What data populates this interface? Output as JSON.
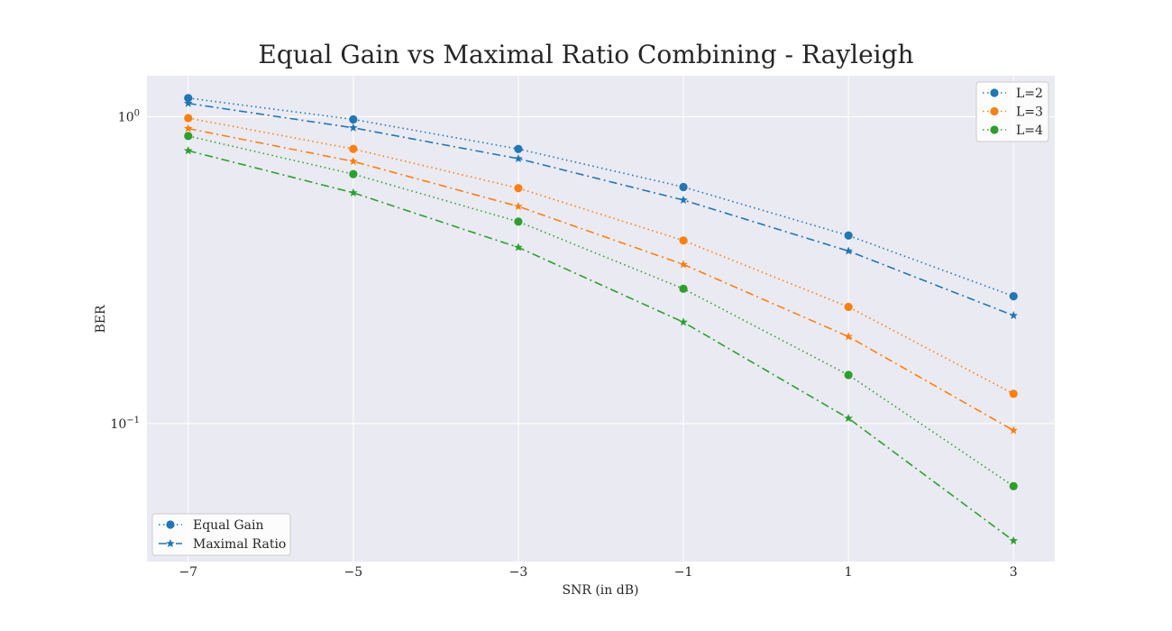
{
  "chart_data": {
    "type": "line",
    "title": "Equal Gain vs Maximal Ratio Combining - Rayleigh",
    "xlabel": "SNR (in dB)",
    "ylabel": "BER",
    "yscale": "log",
    "x": [
      -7,
      -5,
      -3,
      -1,
      1,
      3
    ],
    "xticks": [
      -7,
      -5,
      -3,
      -1,
      1,
      3
    ],
    "xtick_labels": [
      "−7",
      "−5",
      "−3",
      "−1",
      "1",
      "3"
    ],
    "xlim": [
      -7.5,
      3.5
    ],
    "ylim": [
      0.0355,
      1.36
    ],
    "yticks": [
      {
        "value": 1.0,
        "base": "10",
        "exp": "0"
      },
      {
        "value": 0.1,
        "base": "10",
        "exp": "−1"
      }
    ],
    "grid": true,
    "colors": {
      "L=2": "#1f77b4",
      "L=3": "#ff7f0e",
      "L=4": "#2ca02c",
      "background": "#eaeaf2"
    },
    "series": [
      {
        "name": "L=2",
        "method": "Equal Gain",
        "values": [
          1.15,
          0.98,
          0.785,
          0.59,
          0.41,
          0.26
        ]
      },
      {
        "name": "L=2",
        "method": "Maximal Ratio",
        "values": [
          1.105,
          0.92,
          0.73,
          0.535,
          0.365,
          0.225
        ]
      },
      {
        "name": "L=3",
        "method": "Equal Gain",
        "values": [
          0.99,
          0.785,
          0.585,
          0.395,
          0.24,
          0.125
        ]
      },
      {
        "name": "L=3",
        "method": "Maximal Ratio",
        "values": [
          0.915,
          0.715,
          0.51,
          0.33,
          0.192,
          0.095
        ]
      },
      {
        "name": "L=4",
        "method": "Equal Gain",
        "values": [
          0.865,
          0.65,
          0.455,
          0.275,
          0.144,
          0.0625
        ]
      },
      {
        "name": "L=4",
        "method": "Maximal Ratio",
        "values": [
          0.775,
          0.565,
          0.375,
          0.214,
          0.104,
          0.0415
        ]
      }
    ],
    "legend_color": {
      "position": "top-right",
      "entries": [
        "L=2",
        "L=3",
        "L=4"
      ]
    },
    "legend_style": {
      "position": "bottom-left",
      "entries": [
        "Equal Gain",
        "Maximal Ratio"
      ]
    }
  }
}
